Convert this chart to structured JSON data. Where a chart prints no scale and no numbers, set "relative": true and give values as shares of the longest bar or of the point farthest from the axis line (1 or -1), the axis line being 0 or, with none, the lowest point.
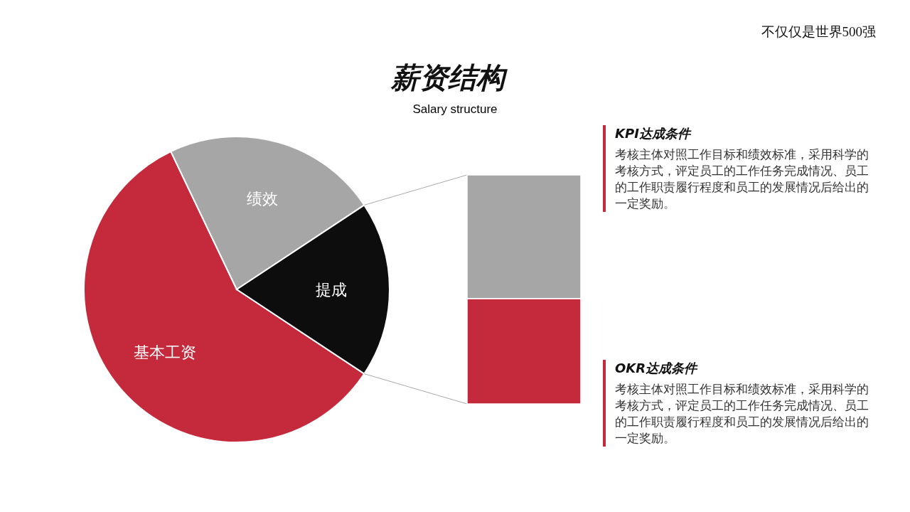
{
  "chart_data": [
    {
      "type": "pie",
      "title": "薪资结构",
      "subtitle": "Salary structure",
      "categories": [
        "基本工资",
        "绩效",
        "提成"
      ],
      "values": [
        58.6,
        22.8,
        18.6
      ],
      "colors": [
        "#c52a3c",
        "#a6a6a6",
        "#0d0d0d"
      ],
      "annotations": [
        "不仅仅是世界500强"
      ]
    },
    {
      "type": "bar",
      "stacked": true,
      "relative": true,
      "categories": [
        null
      ],
      "series": [
        {
          "color": "#c52a3c",
          "values": [
            0.46
          ]
        },
        {
          "color": "#a6a6a6",
          "values": [
            0.54
          ]
        }
      ],
      "annotations": [
        "KPI达成条件",
        "考核主体对照工作目标和绩效标准，采用科学的考核方式，评定员工的工作任务完成情况、员工的工作职责履行程度和员工的发展情况后给出的一定奖励。",
        "OKR达成条件",
        "考核主体对照工作目标和绩效标准，采用科学的考核方式，评定员工的工作任务完成情况、员工的工作职责履行程度和员工的发展情况后给出的一定奖励。"
      ]
    }
  ]
}
